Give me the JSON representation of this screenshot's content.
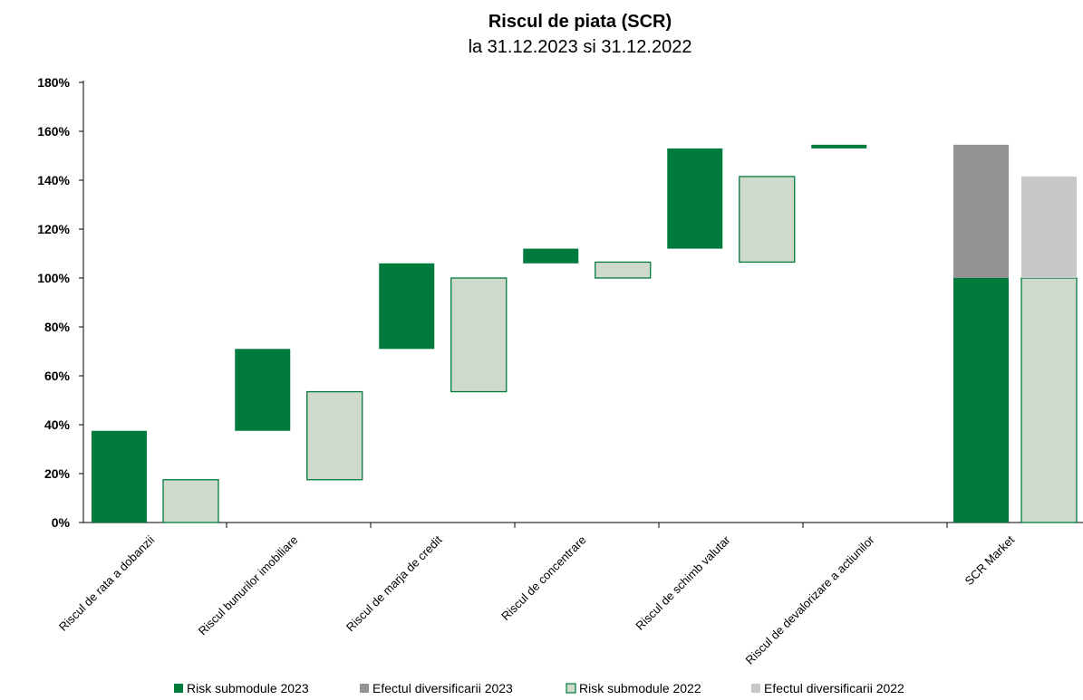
{
  "chart_data": {
    "type": "bar",
    "subtype": "waterfall",
    "title": "Riscul de piata (SCR)",
    "subtitle": "la 31.12.2023 si 31.12.2022",
    "ylim": [
      0,
      180
    ],
    "yticks": [
      "0%",
      "20%",
      "40%",
      "60%",
      "80%",
      "100%",
      "120%",
      "140%",
      "160%",
      "180%"
    ],
    "grid": false,
    "legend_position": "bottom",
    "categories": [
      "Riscul de rata a dobanzii",
      "Riscul bunurilor imobiliare",
      "Riscul de marja de credit",
      "Riscul de concentrare",
      "Riscul de schimb valutar",
      "Riscul de devalorizare a actiunilor",
      "SCR Market"
    ],
    "series": [
      {
        "name": "Risk submodule 2023",
        "color": "#007A3D",
        "style": "solid",
        "bars": [
          {
            "category": 0,
            "base": 0,
            "top": 37.5
          },
          {
            "category": 1,
            "base": 37.5,
            "top": 71
          },
          {
            "category": 2,
            "base": 71,
            "top": 106
          },
          {
            "category": 3,
            "base": 106,
            "top": 112
          },
          {
            "category": 4,
            "base": 112,
            "top": 153
          },
          {
            "category": 5,
            "base": 153,
            "top": 154.5
          },
          {
            "category": 6,
            "base": 0,
            "top": 100
          }
        ]
      },
      {
        "name": "Efectul diversificarii 2023",
        "color": "#939393",
        "style": "solid",
        "bars": [
          {
            "category": 6,
            "base": 100,
            "top": 154.5
          }
        ]
      },
      {
        "name": "Risk submodule 2022",
        "color": "#D0DACC",
        "border": "#007A3D",
        "style": "outlined",
        "bars": [
          {
            "category": 0,
            "base": 0,
            "top": 17.5
          },
          {
            "category": 1,
            "base": 17.5,
            "top": 53.5
          },
          {
            "category": 2,
            "base": 53.5,
            "top": 100
          },
          {
            "category": 3,
            "base": 100,
            "top": 106.5
          },
          {
            "category": 4,
            "base": 106.5,
            "top": 141.5
          },
          {
            "category": 6,
            "base": 0,
            "top": 100
          }
        ]
      },
      {
        "name": "Efectul diversificarii 2022",
        "color": "#C8C8C8",
        "style": "solid",
        "bars": [
          {
            "category": 6,
            "base": 100,
            "top": 141.5
          }
        ]
      }
    ]
  }
}
